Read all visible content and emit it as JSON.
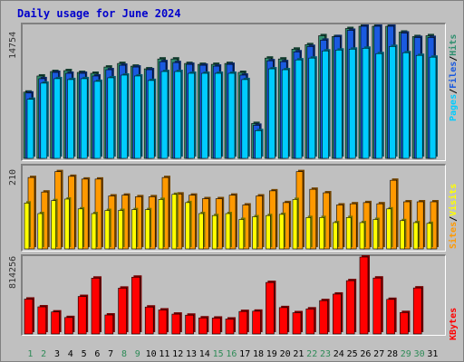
{
  "title": "Daily usage for June 2024",
  "chart_data": [
    {
      "type": "bar",
      "name": "hits-files-pages",
      "categories": [
        "1",
        "2",
        "3",
        "4",
        "5",
        "6",
        "7",
        "8",
        "9",
        "10",
        "11",
        "12",
        "13",
        "14",
        "15",
        "16",
        "17",
        "18",
        "19",
        "20",
        "21",
        "22",
        "23",
        "24",
        "25",
        "26",
        "27",
        "28",
        "29",
        "30",
        "31"
      ],
      "weekend_days": [
        "1",
        "2",
        "8",
        "9",
        "15",
        "16",
        "22",
        "23",
        "29",
        "30"
      ],
      "y_max_label": "14754",
      "ylim": [
        0,
        14754
      ],
      "series": [
        {
          "name": "Hits",
          "color": "#2f8f6f",
          "values": [
            7400,
            9200,
            9700,
            9800,
            9600,
            9500,
            10200,
            10600,
            10300,
            10000,
            11100,
            11100,
            10600,
            10500,
            10500,
            10600,
            9600,
            3900,
            11200,
            11100,
            12200,
            12700,
            13700,
            13600,
            14500,
            14900,
            14900,
            15200,
            14100,
            13600,
            13700
          ]
        },
        {
          "name": "Files",
          "color": "#1a5ae0",
          "values": [
            7300,
            8900,
            9600,
            9500,
            9500,
            9200,
            9900,
            10400,
            10200,
            9900,
            10800,
            10700,
            10500,
            10400,
            10300,
            10500,
            9300,
            3700,
            10900,
            10800,
            11900,
            12500,
            13200,
            13600,
            14300,
            14900,
            14900,
            15200,
            14000,
            13500,
            13500
          ]
        },
        {
          "name": "Pages",
          "color": "#00ccff",
          "values": [
            6600,
            8400,
            8900,
            8800,
            8900,
            8600,
            9000,
            9300,
            9200,
            8700,
            9700,
            9700,
            9500,
            9500,
            9500,
            9500,
            8800,
            3100,
            10000,
            9900,
            11000,
            11200,
            12000,
            12100,
            12200,
            12300,
            11700,
            12500,
            11800,
            11500,
            11300
          ]
        }
      ],
      "legend": [
        "Pages",
        "Files",
        "Hits"
      ],
      "legend_colors": [
        "#00ccff",
        "#1a5ae0",
        "#2f8f6f"
      ]
    },
    {
      "type": "bar",
      "name": "visits-sites",
      "categories": [
        "1",
        "2",
        "3",
        "4",
        "5",
        "6",
        "7",
        "8",
        "9",
        "10",
        "11",
        "12",
        "13",
        "14",
        "15",
        "16",
        "17",
        "18",
        "19",
        "20",
        "21",
        "22",
        "23",
        "24",
        "25",
        "26",
        "27",
        "28",
        "29",
        "30",
        "31"
      ],
      "y_max_label": "210",
      "ylim": [
        0,
        210
      ],
      "series": [
        {
          "name": "Visits",
          "color": "#ff9900",
          "values": [
            182,
            145,
            197,
            185,
            178,
            178,
            135,
            137,
            133,
            133,
            182,
            140,
            137,
            128,
            128,
            137,
            112,
            135,
            148,
            118,
            197,
            152,
            143,
            112,
            115,
            118,
            115,
            175,
            120,
            120,
            120
          ]
        },
        {
          "name": "Sites",
          "color": "#ffff00",
          "values": [
            117,
            90,
            123,
            127,
            102,
            90,
            98,
            98,
            100,
            100,
            126,
            139,
            118,
            90,
            85,
            90,
            75,
            82,
            85,
            88,
            126,
            80,
            80,
            67,
            80,
            67,
            75,
            102,
            72,
            67,
            65
          ]
        }
      ],
      "legend": [
        "Sites",
        "Visits"
      ],
      "legend_colors": [
        "#ff9900",
        "#ffff00"
      ]
    },
    {
      "type": "bar",
      "name": "kbytes",
      "categories": [
        "1",
        "2",
        "3",
        "4",
        "5",
        "6",
        "7",
        "8",
        "9",
        "10",
        "11",
        "12",
        "13",
        "14",
        "15",
        "16",
        "17",
        "18",
        "19",
        "20",
        "21",
        "22",
        "23",
        "24",
        "25",
        "26",
        "27",
        "28",
        "29",
        "30",
        "31"
      ],
      "y_max_label": "814256",
      "ylim": [
        0,
        814256
      ],
      "series": [
        {
          "name": "KBytes",
          "color": "#ff0000",
          "values": [
            369000,
            287000,
            233000,
            174000,
            397000,
            591000,
            201000,
            485000,
            601000,
            285000,
            254000,
            210000,
            199000,
            170000,
            168000,
            158000,
            238000,
            241000,
            545000,
            279000,
            225000,
            265000,
            353000,
            422000,
            564000,
            825000,
            592000,
            366000,
            227000,
            487000,
            0
          ]
        }
      ],
      "legend": [
        "KBytes"
      ],
      "legend_colors": [
        "#ff0000"
      ]
    }
  ],
  "colors": {
    "title": "#0000cc",
    "weekend_label": "#2e8b57",
    "weekday_label": "#000000",
    "separator": "#000000"
  }
}
